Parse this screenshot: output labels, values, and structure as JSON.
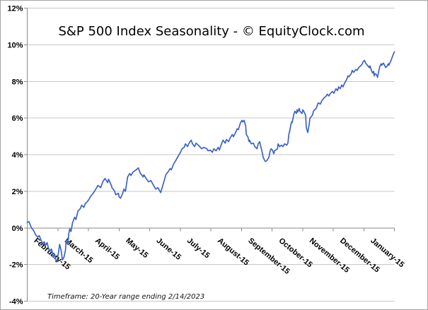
{
  "title": "S&P 500 Index Seasonality - © EquityClock.com",
  "footnote": "Timeframe: 20-Year range ending 2/14/2023",
  "chart_data": {
    "type": "line",
    "title": "S&P 500 Index Seasonality - © EquityClock.com",
    "footnote": "Timeframe: 20-Year range ending 2/14/2023",
    "xlabel": "",
    "ylabel": "",
    "x_categories": [
      "February-15",
      "March-15",
      "April-15",
      "May-15",
      "June-15",
      "July-15",
      "August-15",
      "September-15",
      "October-15",
      "November-15",
      "December-15",
      "January-15"
    ],
    "ylim": [
      -4,
      12
    ],
    "ytick_step": 2,
    "ytick_labels": [
      "12%",
      "10%",
      "8%",
      "6%",
      "4%",
      "2%",
      "0%",
      "-2%",
      "-4%"
    ],
    "grid": true,
    "legend": false,
    "line_color": "#3c63c9",
    "grid_color": "#c6c6c6",
    "axis_color": "#8a8a8a",
    "series": [
      {
        "points": [
          [
            0.0,
            0.3
          ],
          [
            0.05,
            0.35
          ],
          [
            0.09,
            0.2
          ],
          [
            0.14,
            0.0
          ],
          [
            0.21,
            -0.15
          ],
          [
            0.28,
            -0.4
          ],
          [
            0.35,
            -0.5
          ],
          [
            0.39,
            -0.42
          ],
          [
            0.46,
            -0.7
          ],
          [
            0.51,
            -0.89
          ],
          [
            0.55,
            -0.75
          ],
          [
            0.6,
            -0.95
          ],
          [
            0.65,
            -0.8
          ],
          [
            0.69,
            -1.08
          ],
          [
            0.74,
            -1.27
          ],
          [
            0.79,
            -1.15
          ],
          [
            0.83,
            -1.4
          ],
          [
            0.85,
            -1.58
          ],
          [
            0.9,
            -1.45
          ],
          [
            0.92,
            -1.7
          ],
          [
            0.97,
            -1.85
          ],
          [
            1.02,
            -1.35
          ],
          [
            1.06,
            -0.9
          ],
          [
            1.11,
            -1.25
          ],
          [
            1.15,
            -1.75
          ],
          [
            1.2,
            -1.6
          ],
          [
            1.25,
            -1.2
          ],
          [
            1.27,
            -0.7
          ],
          [
            1.32,
            -0.9
          ],
          [
            1.36,
            -0.3
          ],
          [
            1.39,
            -0.05
          ],
          [
            1.43,
            -0.2
          ],
          [
            1.48,
            0.27
          ],
          [
            1.55,
            0.58
          ],
          [
            1.59,
            0.46
          ],
          [
            1.66,
            0.93
          ],
          [
            1.73,
            1.04
          ],
          [
            1.78,
            1.24
          ],
          [
            1.85,
            1.12
          ],
          [
            1.89,
            1.31
          ],
          [
            1.96,
            1.43
          ],
          [
            2.01,
            1.54
          ],
          [
            2.08,
            1.74
          ],
          [
            2.17,
            1.93
          ],
          [
            2.24,
            2.12
          ],
          [
            2.31,
            2.32
          ],
          [
            2.4,
            2.2
          ],
          [
            2.47,
            2.51
          ],
          [
            2.54,
            2.7
          ],
          [
            2.63,
            2.47
          ],
          [
            2.66,
            2.66
          ],
          [
            2.75,
            2.32
          ],
          [
            2.77,
            2.2
          ],
          [
            2.86,
            2.0
          ],
          [
            2.89,
            1.81
          ],
          [
            2.98,
            1.89
          ],
          [
            3.0,
            1.7
          ],
          [
            3.05,
            1.62
          ],
          [
            3.12,
            1.89
          ],
          [
            3.16,
            2.12
          ],
          [
            3.21,
            2.0
          ],
          [
            3.28,
            2.78
          ],
          [
            3.35,
            2.97
          ],
          [
            3.39,
            2.86
          ],
          [
            3.46,
            3.05
          ],
          [
            3.56,
            3.17
          ],
          [
            3.63,
            3.28
          ],
          [
            3.7,
            2.97
          ],
          [
            3.79,
            2.78
          ],
          [
            3.81,
            2.9
          ],
          [
            3.9,
            2.66
          ],
          [
            3.97,
            2.51
          ],
          [
            4.04,
            2.59
          ],
          [
            4.13,
            2.32
          ],
          [
            4.2,
            2.12
          ],
          [
            4.27,
            2.2
          ],
          [
            4.36,
            1.93
          ],
          [
            4.41,
            2.2
          ],
          [
            4.48,
            2.6
          ],
          [
            4.53,
            2.9
          ],
          [
            4.6,
            3.05
          ],
          [
            4.67,
            3.24
          ],
          [
            4.71,
            3.17
          ],
          [
            4.78,
            3.47
          ],
          [
            4.85,
            3.67
          ],
          [
            4.94,
            3.94
          ],
          [
            5.01,
            4.13
          ],
          [
            5.06,
            4.32
          ],
          [
            5.13,
            4.4
          ],
          [
            5.17,
            4.59
          ],
          [
            5.24,
            4.44
          ],
          [
            5.29,
            4.63
          ],
          [
            5.36,
            4.79
          ],
          [
            5.4,
            4.59
          ],
          [
            5.47,
            4.44
          ],
          [
            5.52,
            4.63
          ],
          [
            5.59,
            4.52
          ],
          [
            5.66,
            4.4
          ],
          [
            5.7,
            4.32
          ],
          [
            5.77,
            4.4
          ],
          [
            5.87,
            4.32
          ],
          [
            5.91,
            4.21
          ],
          [
            5.98,
            4.25
          ],
          [
            6.05,
            4.13
          ],
          [
            6.1,
            4.32
          ],
          [
            6.17,
            4.21
          ],
          [
            6.24,
            4.4
          ],
          [
            6.28,
            4.25
          ],
          [
            6.35,
            4.59
          ],
          [
            6.4,
            4.79
          ],
          [
            6.47,
            4.63
          ],
          [
            6.51,
            4.83
          ],
          [
            6.58,
            4.71
          ],
          [
            6.63,
            4.9
          ],
          [
            6.7,
            5.1
          ],
          [
            6.74,
            4.98
          ],
          [
            6.81,
            5.21
          ],
          [
            6.86,
            5.41
          ],
          [
            6.9,
            5.37
          ],
          [
            6.97,
            5.75
          ],
          [
            7.02,
            5.87
          ],
          [
            7.04,
            5.79
          ],
          [
            7.09,
            5.87
          ],
          [
            7.14,
            5.56
          ],
          [
            7.16,
            5.1
          ],
          [
            7.21,
            4.98
          ],
          [
            7.25,
            4.71
          ],
          [
            7.27,
            4.79
          ],
          [
            7.32,
            4.59
          ],
          [
            7.39,
            4.63
          ],
          [
            7.44,
            4.44
          ],
          [
            7.51,
            4.32
          ],
          [
            7.55,
            4.59
          ],
          [
            7.6,
            4.71
          ],
          [
            7.62,
            4.52
          ],
          [
            7.67,
            4.21
          ],
          [
            7.71,
            3.86
          ],
          [
            7.74,
            3.75
          ],
          [
            7.78,
            3.63
          ],
          [
            7.83,
            3.67
          ],
          [
            7.9,
            3.86
          ],
          [
            7.94,
            4.21
          ],
          [
            7.97,
            4.32
          ],
          [
            8.01,
            4.25
          ],
          [
            8.06,
            4.05
          ],
          [
            8.08,
            4.21
          ],
          [
            8.18,
            4.32
          ],
          [
            8.2,
            4.59
          ],
          [
            8.25,
            4.44
          ],
          [
            8.31,
            4.52
          ],
          [
            8.36,
            4.44
          ],
          [
            8.41,
            4.59
          ],
          [
            8.48,
            4.52
          ],
          [
            8.52,
            4.63
          ],
          [
            8.55,
            5.1
          ],
          [
            8.59,
            5.37
          ],
          [
            8.61,
            5.6
          ],
          [
            8.64,
            5.79
          ],
          [
            8.66,
            5.75
          ],
          [
            8.71,
            6.18
          ],
          [
            8.75,
            6.37
          ],
          [
            8.8,
            6.25
          ],
          [
            8.82,
            6.45
          ],
          [
            8.84,
            6.33
          ],
          [
            8.89,
            6.52
          ],
          [
            8.91,
            6.37
          ],
          [
            8.98,
            6.25
          ],
          [
            9.01,
            6.45
          ],
          [
            9.05,
            6.33
          ],
          [
            9.1,
            6.14
          ],
          [
            9.12,
            5.48
          ],
          [
            9.17,
            5.21
          ],
          [
            9.21,
            5.6
          ],
          [
            9.24,
            5.98
          ],
          [
            9.33,
            6.18
          ],
          [
            9.35,
            6.37
          ],
          [
            9.44,
            6.52
          ],
          [
            9.47,
            6.64
          ],
          [
            9.51,
            6.83
          ],
          [
            9.58,
            6.76
          ],
          [
            9.63,
            6.95
          ],
          [
            9.7,
            7.1
          ],
          [
            9.77,
            7.2
          ],
          [
            9.81,
            7.3
          ],
          [
            9.86,
            7.2
          ],
          [
            9.91,
            7.35
          ],
          [
            9.98,
            7.45
          ],
          [
            10.02,
            7.35
          ],
          [
            10.09,
            7.6
          ],
          [
            10.14,
            7.5
          ],
          [
            10.18,
            7.7
          ],
          [
            10.23,
            7.6
          ],
          [
            10.28,
            7.8
          ],
          [
            10.32,
            7.7
          ],
          [
            10.37,
            7.9
          ],
          [
            10.44,
            8.1
          ],
          [
            10.48,
            8.3
          ],
          [
            10.51,
            8.25
          ],
          [
            10.6,
            8.45
          ],
          [
            10.62,
            8.6
          ],
          [
            10.67,
            8.5
          ],
          [
            10.74,
            8.65
          ],
          [
            10.78,
            8.6
          ],
          [
            10.83,
            8.75
          ],
          [
            10.9,
            8.85
          ],
          [
            10.95,
            8.95
          ],
          [
            10.97,
            9.05
          ],
          [
            11.02,
            9.15
          ],
          [
            11.06,
            9.0
          ],
          [
            11.13,
            8.85
          ],
          [
            11.18,
            8.75
          ],
          [
            11.2,
            8.85
          ],
          [
            11.25,
            8.6
          ],
          [
            11.29,
            8.45
          ],
          [
            11.32,
            8.55
          ],
          [
            11.34,
            8.3
          ],
          [
            11.36,
            8.42
          ],
          [
            11.41,
            8.38
          ],
          [
            11.45,
            8.22
          ],
          [
            11.48,
            8.49
          ],
          [
            11.52,
            8.8
          ],
          [
            11.57,
            8.96
          ],
          [
            11.59,
            8.88
          ],
          [
            11.64,
            9.0
          ],
          [
            11.68,
            8.88
          ],
          [
            11.71,
            8.76
          ],
          [
            11.75,
            8.8
          ],
          [
            11.8,
            8.96
          ],
          [
            11.82,
            8.88
          ],
          [
            11.87,
            9.07
          ],
          [
            11.92,
            9.27
          ],
          [
            11.94,
            9.38
          ],
          [
            11.98,
            9.54
          ],
          [
            12.0,
            9.62
          ]
        ]
      }
    ]
  }
}
